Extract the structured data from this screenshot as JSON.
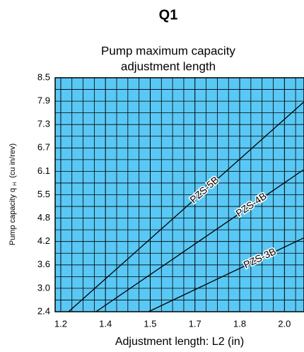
{
  "chart_data": {
    "type": "line",
    "heading": "Q1",
    "title": [
      "Pump maximum capacity",
      "adjustment length"
    ],
    "xlabel": "Adjustment length: L2 (in)",
    "ylabel": "Pump capacity q",
    "ylabel_sub": "H",
    "ylabel_unit": "(cu in/rev)",
    "xlim": [
      1.18,
      2.07
    ],
    "ylim": [
      2.4,
      8.5
    ],
    "xticks": [
      1.2,
      {
        "value": 1.36,
        "label": "1.4"
      },
      {
        "value": 1.52,
        "label": "1.5"
      },
      {
        "value": 1.68,
        "label": "1.7"
      },
      {
        "value": 1.84,
        "label": "1.8"
      },
      {
        "value": 2.0,
        "label": "2.0"
      }
    ],
    "yticks": [
      2.4,
      {
        "value": 3.01,
        "label": "3.0"
      },
      {
        "value": 3.62,
        "label": "3.6"
      },
      {
        "value": 4.23,
        "label": "4.2"
      },
      {
        "value": 4.84,
        "label": "4.8"
      },
      {
        "value": 5.45,
        "label": "5.5"
      },
      {
        "value": 6.06,
        "label": "6.1"
      },
      {
        "value": 6.67,
        "label": "6.7"
      },
      {
        "value": 7.28,
        "label": "7.3"
      },
      {
        "value": 7.89,
        "label": "7.9"
      },
      8.5
    ],
    "background": "#5ac8f5",
    "grid": true,
    "series": [
      {
        "name": "PZS-5B",
        "color": "#000000",
        "x": [
          1.228,
          2.068
        ],
        "values": [
          2.4,
          7.86
        ]
      },
      {
        "name": "PZS-4B",
        "color": "#000000",
        "x": [
          1.326,
          2.068
        ],
        "values": [
          2.4,
          6.1
        ]
      },
      {
        "name": "PZS-3B",
        "color": "#000000",
        "x": [
          1.514,
          2.068
        ],
        "values": [
          2.4,
          4.32
        ]
      }
    ]
  }
}
